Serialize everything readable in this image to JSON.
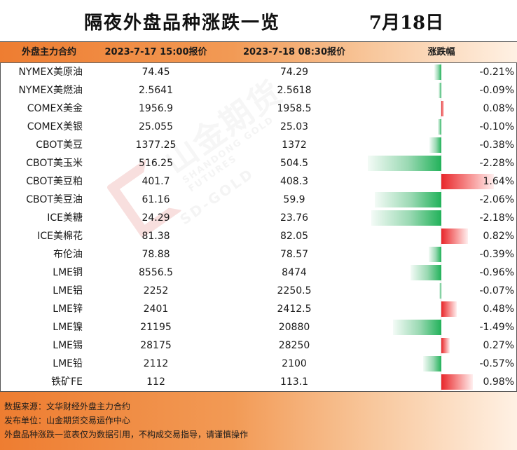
{
  "title": "隔夜外盘品种涨跌一览",
  "date": "7月18日",
  "headers": {
    "contract": "外盘主力合约",
    "price1": "2023-7-17 15:00报价",
    "price2": "2023-7-18 08:30报价",
    "change": "涨跌幅"
  },
  "rows": [
    {
      "name": "NYMEX美原油",
      "v1": "74.45",
      "v2": "74.29",
      "pct": "-0.21%",
      "change": -0.21
    },
    {
      "name": "NYMEX美燃油",
      "v1": "2.5641",
      "v2": "2.5618",
      "pct": "-0.09%",
      "change": -0.09
    },
    {
      "name": "COMEX美金",
      "v1": "1956.9",
      "v2": "1958.5",
      "pct": "0.08%",
      "change": 0.08
    },
    {
      "name": "COMEX美银",
      "v1": "25.055",
      "v2": "25.03",
      "pct": "-0.10%",
      "change": -0.1
    },
    {
      "name": "CBOT美豆",
      "v1": "1377.25",
      "v2": "1372",
      "pct": "-0.38%",
      "change": -0.38
    },
    {
      "name": "CBOT美玉米",
      "v1": "516.25",
      "v2": "504.5",
      "pct": "-2.28%",
      "change": -2.28
    },
    {
      "name": "CBOT美豆粕",
      "v1": "401.7",
      "v2": "408.3",
      "pct": "1.64%",
      "change": 1.64
    },
    {
      "name": "CBOT美豆油",
      "v1": "61.16",
      "v2": "59.9",
      "pct": "-2.06%",
      "change": -2.06
    },
    {
      "name": "ICE美糖",
      "v1": "24.29",
      "v2": "23.76",
      "pct": "-2.18%",
      "change": -2.18
    },
    {
      "name": "ICE美棉花",
      "v1": "81.38",
      "v2": "82.05",
      "pct": "0.82%",
      "change": 0.82
    },
    {
      "name": "布伦油",
      "v1": "78.88",
      "v2": "78.57",
      "pct": "-0.39%",
      "change": -0.39
    },
    {
      "name": "LME铜",
      "v1": "8556.5",
      "v2": "8474",
      "pct": "-0.96%",
      "change": -0.96
    },
    {
      "name": "LME铝",
      "v1": "2252",
      "v2": "2250.5",
      "pct": "-0.07%",
      "change": -0.07
    },
    {
      "name": "LME锌",
      "v1": "2401",
      "v2": "2412.5",
      "pct": "0.48%",
      "change": 0.48
    },
    {
      "name": "LME镍",
      "v1": "21195",
      "v2": "20880",
      "pct": "-1.49%",
      "change": -1.49
    },
    {
      "name": "LME锡",
      "v1": "28175",
      "v2": "28250",
      "pct": "0.27%",
      "change": 0.27
    },
    {
      "name": "LME铅",
      "v1": "2112",
      "v2": "2100",
      "pct": "-0.57%",
      "change": -0.57
    },
    {
      "name": "铁矿FE",
      "v1": "112",
      "v2": "113.1",
      "pct": "0.98%",
      "change": 0.98
    }
  ],
  "watermark": {
    "main": "山金期货",
    "sub": "SHANDONG GOLD FUTURES",
    "brand": "SD-GOLD"
  },
  "footer": {
    "line1": "数据来源：文华财经外盘主力合约",
    "line2": "发布单位：山金期货交易运作中心",
    "line3": "外盘品种涨跌一览表仅为数据引用，不构成交易指导，请谨慎操作"
  },
  "colors": {
    "header_orange": "#ee7d31",
    "up_red": "#e8262a",
    "down_green": "#22b25a"
  }
}
